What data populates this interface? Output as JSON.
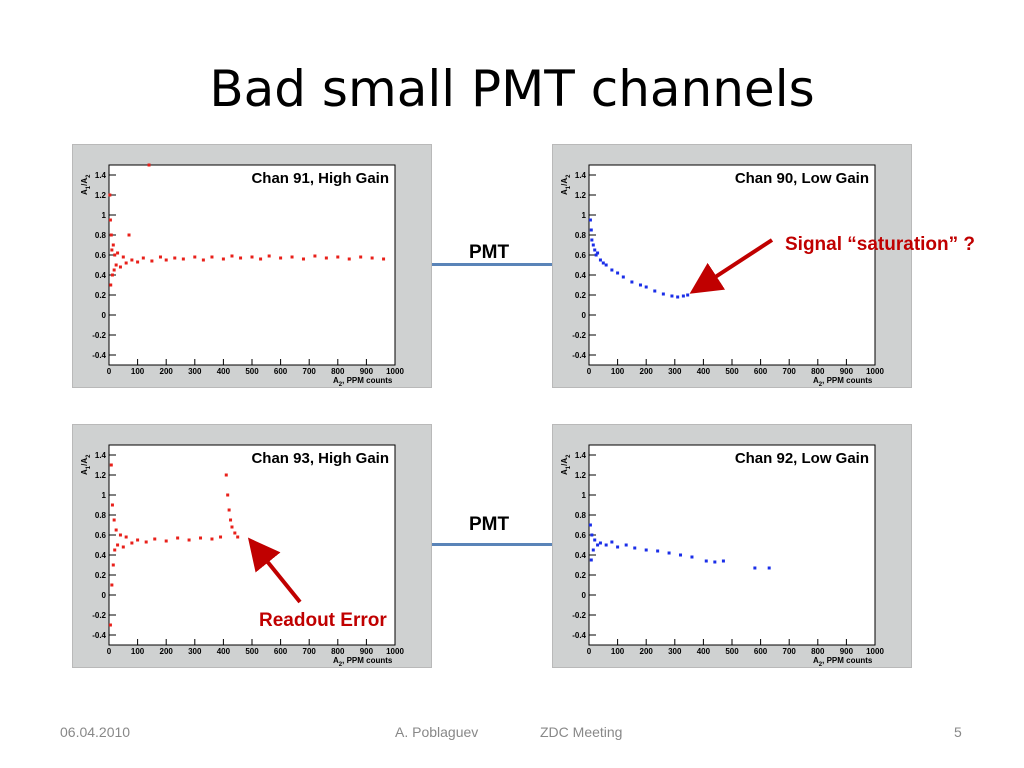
{
  "slide": {
    "title": "Bad small PMT channels",
    "pmt_label_top": "PMT",
    "pmt_label_bottom": "PMT",
    "annotation_saturation": "Signal “saturation” ?",
    "annotation_readout": "Readout Error"
  },
  "footer": {
    "date": "06.04.2010",
    "author": "A. Poblaguev",
    "meeting": "ZDC Meeting",
    "page": "5"
  },
  "colors": {
    "red_series": "#e8201a",
    "blue_series": "#1a2ee8",
    "panel_bg": "#cfd1d1",
    "connector": "#5a84b8",
    "annotation": "#c00000"
  },
  "chart_data": [
    {
      "type": "scatter",
      "title": "Chan 91, High Gain",
      "xlabel": "A_2, PPM counts",
      "ylabel": "A_1/A_2",
      "xlim": [
        0,
        1000
      ],
      "ylim": [
        -0.5,
        1.5
      ],
      "xticks": [
        0,
        100,
        200,
        300,
        400,
        500,
        600,
        700,
        800,
        900,
        1000
      ],
      "yticks": [
        -0.4,
        -0.2,
        0,
        0.2,
        0.4,
        0.6,
        0.8,
        1,
        1.2,
        1.4
      ],
      "color": "#e8201a",
      "series": [
        {
          "points": [
            [
              3,
              1.2
            ],
            [
              5,
              0.95
            ],
            [
              6,
              0.3
            ],
            [
              8,
              0.8
            ],
            [
              10,
              0.65
            ],
            [
              12,
              0.4
            ],
            [
              15,
              0.7
            ],
            [
              18,
              0.45
            ],
            [
              20,
              0.6
            ],
            [
              25,
              0.5
            ],
            [
              30,
              0.62
            ],
            [
              40,
              0.48
            ],
            [
              50,
              0.58
            ],
            [
              60,
              0.52
            ],
            [
              70,
              0.8
            ],
            [
              80,
              0.55
            ],
            [
              100,
              0.53
            ],
            [
              120,
              0.57
            ],
            [
              150,
              0.54
            ],
            [
              180,
              0.58
            ],
            [
              200,
              0.55
            ],
            [
              230,
              0.57
            ],
            [
              260,
              0.56
            ],
            [
              300,
              0.58
            ],
            [
              330,
              0.55
            ],
            [
              360,
              0.58
            ],
            [
              400,
              0.56
            ],
            [
              430,
              0.59
            ],
            [
              460,
              0.57
            ],
            [
              500,
              0.58
            ],
            [
              530,
              0.56
            ],
            [
              560,
              0.59
            ],
            [
              600,
              0.57
            ],
            [
              640,
              0.58
            ],
            [
              680,
              0.56
            ],
            [
              720,
              0.59
            ],
            [
              760,
              0.57
            ],
            [
              800,
              0.58
            ],
            [
              840,
              0.56
            ],
            [
              880,
              0.58
            ],
            [
              920,
              0.57
            ],
            [
              960,
              0.56
            ],
            [
              140,
              1.5
            ]
          ]
        }
      ]
    },
    {
      "type": "scatter",
      "title": "Chan 90, Low Gain",
      "xlabel": "A_2, PPM counts",
      "ylabel": "A_1/A_2",
      "xlim": [
        0,
        1000
      ],
      "ylim": [
        -0.5,
        1.5
      ],
      "xticks": [
        0,
        100,
        200,
        300,
        400,
        500,
        600,
        700,
        800,
        900,
        1000
      ],
      "yticks": [
        -0.4,
        -0.2,
        0,
        0.2,
        0.4,
        0.6,
        0.8,
        1,
        1.2,
        1.4
      ],
      "color": "#1a2ee8",
      "series": [
        {
          "points": [
            [
              5,
              0.95
            ],
            [
              8,
              0.85
            ],
            [
              10,
              0.75
            ],
            [
              15,
              0.7
            ],
            [
              20,
              0.65
            ],
            [
              25,
              0.6
            ],
            [
              30,
              0.62
            ],
            [
              40,
              0.55
            ],
            [
              50,
              0.52
            ],
            [
              60,
              0.5
            ],
            [
              80,
              0.45
            ],
            [
              100,
              0.42
            ],
            [
              120,
              0.38
            ],
            [
              150,
              0.33
            ],
            [
              180,
              0.3
            ],
            [
              200,
              0.28
            ],
            [
              230,
              0.24
            ],
            [
              260,
              0.21
            ],
            [
              290,
              0.19
            ],
            [
              310,
              0.18
            ],
            [
              330,
              0.19
            ],
            [
              345,
              0.2
            ]
          ]
        }
      ]
    },
    {
      "type": "scatter",
      "title": "Chan 93, High Gain",
      "xlabel": "A_2, PPM counts",
      "ylabel": "A_1/A_2",
      "xlim": [
        0,
        1000
      ],
      "ylim": [
        -0.5,
        1.5
      ],
      "xticks": [
        0,
        100,
        200,
        300,
        400,
        500,
        600,
        700,
        800,
        900,
        1000
      ],
      "yticks": [
        -0.4,
        -0.2,
        0,
        0.2,
        0.4,
        0.6,
        0.8,
        1,
        1.2,
        1.4
      ],
      "color": "#e8201a",
      "series": [
        {
          "points": [
            [
              5,
              -0.3
            ],
            [
              8,
              1.3
            ],
            [
              10,
              0.1
            ],
            [
              12,
              0.9
            ],
            [
              15,
              0.3
            ],
            [
              18,
              0.75
            ],
            [
              20,
              0.45
            ],
            [
              25,
              0.65
            ],
            [
              30,
              0.5
            ],
            [
              40,
              0.6
            ],
            [
              50,
              0.48
            ],
            [
              60,
              0.58
            ],
            [
              80,
              0.52
            ],
            [
              100,
              0.55
            ],
            [
              130,
              0.53
            ],
            [
              160,
              0.56
            ],
            [
              200,
              0.54
            ],
            [
              240,
              0.57
            ],
            [
              280,
              0.55
            ],
            [
              320,
              0.57
            ],
            [
              360,
              0.56
            ],
            [
              390,
              0.58
            ],
            [
              410,
              1.2
            ],
            [
              415,
              1.0
            ],
            [
              420,
              0.85
            ],
            [
              425,
              0.75
            ],
            [
              430,
              0.68
            ],
            [
              440,
              0.62
            ],
            [
              450,
              0.58
            ]
          ]
        }
      ]
    },
    {
      "type": "scatter",
      "title": "Chan 92, Low Gain",
      "xlabel": "A_2, PPM counts",
      "ylabel": "A_1/A_2",
      "xlim": [
        0,
        1000
      ],
      "ylim": [
        -0.5,
        1.5
      ],
      "xticks": [
        0,
        100,
        200,
        300,
        400,
        500,
        600,
        700,
        800,
        900,
        1000
      ],
      "yticks": [
        -0.4,
        -0.2,
        0,
        0.2,
        0.4,
        0.6,
        0.8,
        1,
        1.2,
        1.4
      ],
      "color": "#1a2ee8",
      "series": [
        {
          "points": [
            [
              5,
              0.7
            ],
            [
              8,
              0.35
            ],
            [
              10,
              0.6
            ],
            [
              15,
              0.45
            ],
            [
              20,
              0.55
            ],
            [
              30,
              0.5
            ],
            [
              40,
              0.52
            ],
            [
              60,
              0.5
            ],
            [
              80,
              0.53
            ],
            [
              100,
              0.48
            ],
            [
              130,
              0.5
            ],
            [
              160,
              0.47
            ],
            [
              200,
              0.45
            ],
            [
              240,
              0.44
            ],
            [
              280,
              0.42
            ],
            [
              320,
              0.4
            ],
            [
              360,
              0.38
            ],
            [
              410,
              0.34
            ],
            [
              440,
              0.33
            ],
            [
              470,
              0.34
            ],
            [
              580,
              0.27
            ],
            [
              630,
              0.27
            ]
          ]
        }
      ]
    }
  ]
}
